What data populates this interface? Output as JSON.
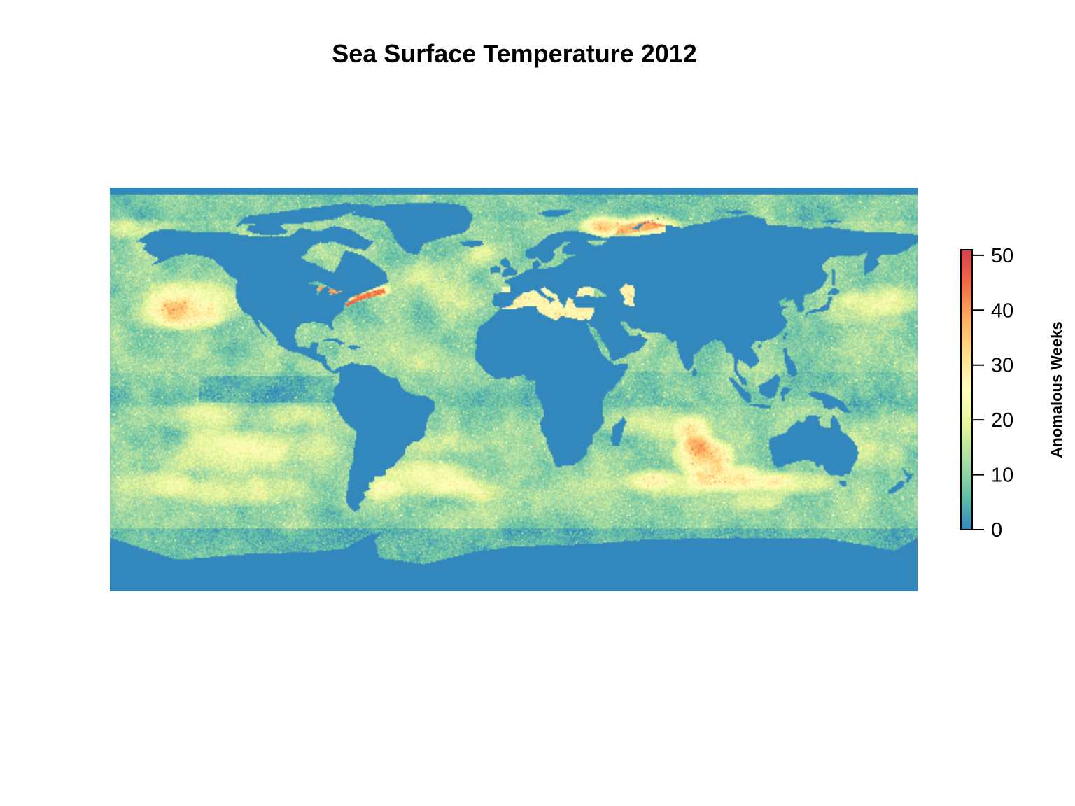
{
  "title": "Sea Surface Temperature 2012",
  "legend": {
    "title": "Anomalous Weeks",
    "ticks": [
      "0",
      "10",
      "20",
      "30",
      "40",
      "50"
    ]
  },
  "chart_data": {
    "type": "heatmap",
    "title": "Sea Surface Temperature 2012",
    "value_label": "Anomalous Weeks",
    "value_range": [
      0,
      51
    ],
    "colorbar_ticks": [
      0,
      10,
      20,
      30,
      40,
      50
    ],
    "colorbar_position": "right",
    "projection": "equirectangular world grid",
    "land_color": "#3587bd",
    "palette": [
      "#3288bd",
      "#66c2a5",
      "#abdda4",
      "#e6f598",
      "#ffffbf",
      "#fee08b",
      "#fdae61",
      "#f46d43",
      "#d53e4f"
    ],
    "hotspots": [
      {
        "region": "Barents / Kara Sea",
        "approx_value": 45
      },
      {
        "region": "US Northeast coast & Great Lakes",
        "approx_value": 48
      },
      {
        "region": "Southern Indian Ocean west of Australia",
        "approx_value": 42
      },
      {
        "region": "Southern Ocean south of Australia",
        "approx_value": 38
      },
      {
        "region": "Mediterranean / Black / Caspian Sea",
        "approx_value": 28
      },
      {
        "region": "Northeast Pacific",
        "approx_value": 30
      },
      {
        "region": "Southeast Pacific subtropics",
        "approx_value": 26
      },
      {
        "region": "South Atlantic mid-latitudes",
        "approx_value": 30
      }
    ]
  }
}
